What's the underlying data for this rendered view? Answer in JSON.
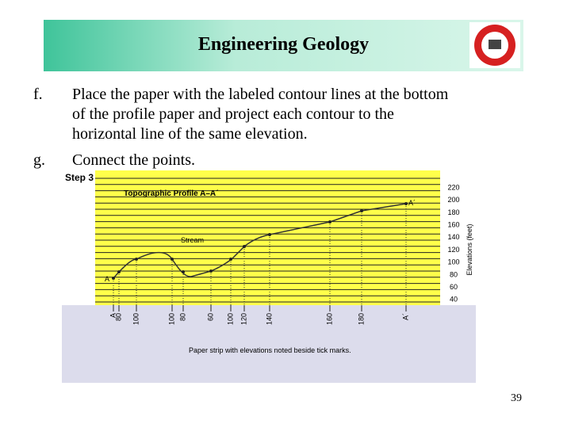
{
  "header": {
    "title": "Engineering Geology"
  },
  "list": [
    {
      "marker": "f.",
      "lines": [
        "Place the paper with the labeled contour lines at the bottom",
        "of the profile paper and project each contour to the",
        "horizontal line of the same elevation."
      ]
    },
    {
      "marker": "g.",
      "lines": [
        "Connect the points."
      ]
    }
  ],
  "figure": {
    "step": "Step 3",
    "title": "Topographic Profile A–A´",
    "axis_label": "Elevations (feet)",
    "elevations": [
      220,
      200,
      180,
      160,
      140,
      120,
      100,
      80,
      60,
      40
    ],
    "stream_label": "Stream",
    "start_label": "A",
    "end_label": "A´",
    "strip_labels": [
      "A",
      "80",
      "100",
      "100",
      "80",
      "60",
      "100",
      "120",
      "140",
      "160",
      "180",
      "A´"
    ],
    "caption": "Paper strip with elevations noted beside tick marks."
  },
  "page_number": "39"
}
